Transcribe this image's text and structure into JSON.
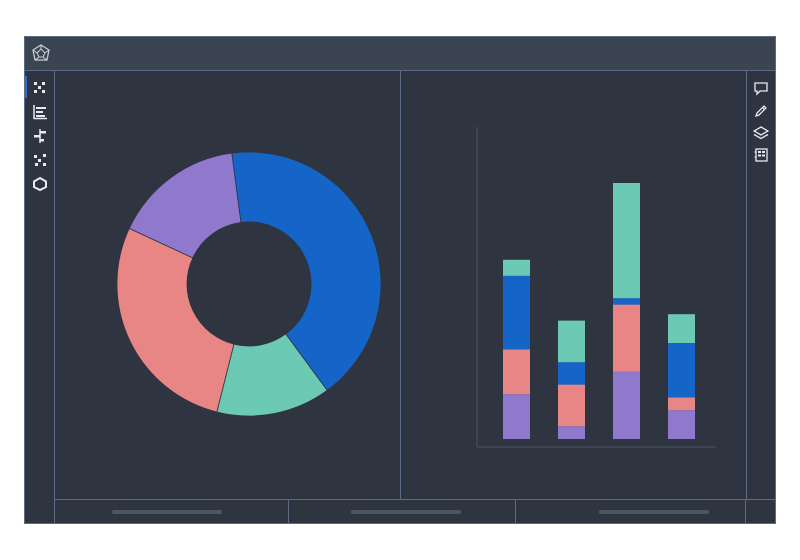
{
  "app": {
    "logo_icon": "polyhedron-logo-icon",
    "background": "#2e3440",
    "titlebar_color": "#3b4552",
    "border_color": "#5a6b85",
    "accent": "#2b6cd8"
  },
  "left_toolbar": {
    "items": [
      {
        "icon": "grid-icon",
        "active": true
      },
      {
        "icon": "bar-chart-icon",
        "active": false
      },
      {
        "icon": "diverging-bars-icon",
        "active": false
      },
      {
        "icon": "scatter-icon",
        "active": false
      },
      {
        "icon": "cycle-icon",
        "active": false
      }
    ]
  },
  "right_toolbar": {
    "items": [
      {
        "icon": "comment-icon"
      },
      {
        "icon": "pencil-icon"
      },
      {
        "icon": "layers-icon"
      },
      {
        "icon": "notebook-icon"
      }
    ]
  },
  "bottom_tabs": [
    {
      "label_placeholder": true
    },
    {
      "label_placeholder": true
    },
    {
      "label_placeholder": true
    }
  ],
  "chart_data": [
    {
      "type": "pie",
      "variant": "donut",
      "slices": [
        {
          "value": 42,
          "color": "#1565c8"
        },
        {
          "value": 14,
          "color": "#6ccab4"
        },
        {
          "value": 28,
          "color": "#e88585"
        },
        {
          "value": 16,
          "color": "#9079cc"
        }
      ]
    },
    {
      "type": "bar",
      "stacked": true,
      "categories": [
        "",
        "",
        "",
        ""
      ],
      "ylim": [
        0,
        100
      ],
      "series": [
        {
          "color": "#9079cc",
          "values": [
            14,
            4,
            21,
            9
          ]
        },
        {
          "color": "#e88585",
          "values": [
            14,
            13,
            21,
            4
          ]
        },
        {
          "color": "#1565c8",
          "values": [
            23,
            7,
            2,
            17
          ]
        },
        {
          "color": "#6ccab4",
          "values": [
            5,
            13,
            36,
            9
          ]
        }
      ],
      "grid": false,
      "legend": "none"
    }
  ]
}
